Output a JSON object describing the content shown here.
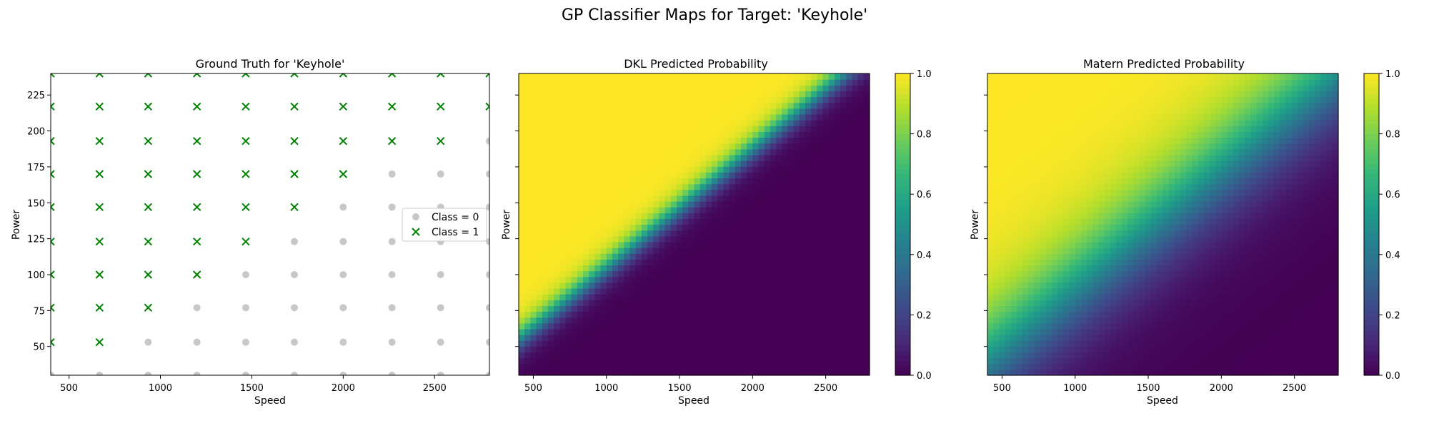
{
  "suptitle": "GP Classifier Maps for Target: 'Keyhole'",
  "chart_data": [
    {
      "type": "scatter",
      "title": "Ground Truth for 'Keyhole'",
      "xlabel": "Speed",
      "ylabel": "Power",
      "xlim": [
        400,
        2800
      ],
      "ylim": [
        30,
        240
      ],
      "xticks": [
        500,
        1000,
        1500,
        2000,
        2500
      ],
      "yticks": [
        50,
        75,
        100,
        125,
        150,
        175,
        200,
        225
      ],
      "grid_x": [
        400,
        667,
        933,
        1200,
        1467,
        1733,
        2000,
        2267,
        2533,
        2800
      ],
      "grid_y": [
        30,
        53,
        77,
        100,
        123,
        147,
        170,
        193,
        217,
        240
      ],
      "class1_count_per_row": [
        0,
        2,
        3,
        4,
        5,
        6,
        7,
        9,
        10,
        10
      ],
      "legend": {
        "position": "center-right",
        "entries": [
          {
            "label": "Class = 0",
            "marker": "circle",
            "color": "#c8c8c8"
          },
          {
            "label": "Class = 1",
            "marker": "x",
            "color": "#008000"
          }
        ]
      }
    },
    {
      "type": "heatmap",
      "title": "DKL Predicted Probability",
      "xlabel": "Speed",
      "ylabel": "Power",
      "xlim": [
        400,
        2800
      ],
      "ylim": [
        30,
        240
      ],
      "xticks": [
        500,
        1000,
        1500,
        2000,
        2500
      ],
      "colorbar": {
        "min": 0.0,
        "max": 1.0,
        "ticks": [
          "0.0",
          "0.2",
          "0.4",
          "0.6",
          "0.8",
          "1.0"
        ],
        "colormap": "viridis"
      },
      "boundary": {
        "slope": 0.083,
        "intercept": 22,
        "width": 6
      }
    },
    {
      "type": "heatmap",
      "title": "Matern Predicted Probability",
      "xlabel": "Speed",
      "ylabel": "Power",
      "xlim": [
        400,
        2800
      ],
      "ylim": [
        30,
        240
      ],
      "xticks": [
        500,
        1000,
        1500,
        2000,
        2500
      ],
      "colorbar": {
        "min": 0.0,
        "max": 1.0,
        "ticks": [
          "0.0",
          "0.2",
          "0.4",
          "0.6",
          "0.8",
          "1.0"
        ],
        "colormap": "viridis"
      },
      "boundary": {
        "slope": 0.083,
        "intercept": 8,
        "width": 22
      }
    }
  ]
}
